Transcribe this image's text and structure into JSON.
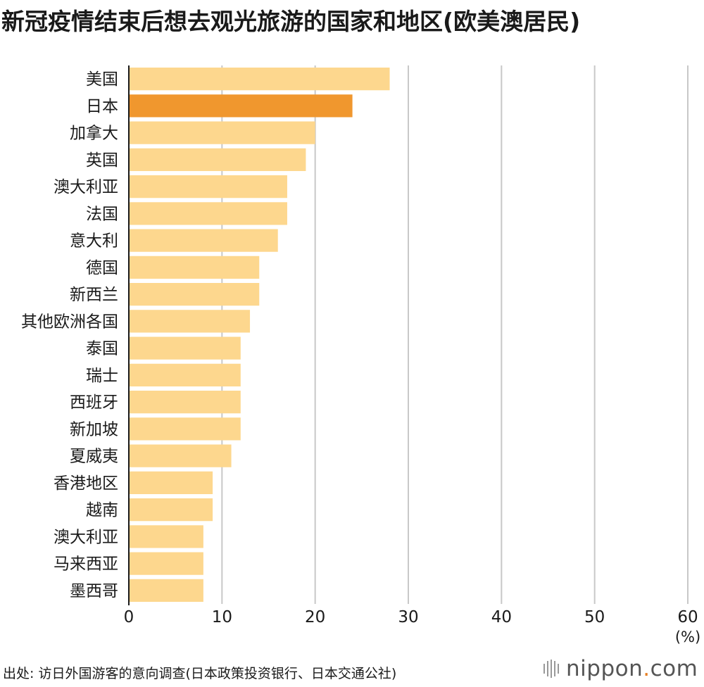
{
  "chart_data": {
    "type": "bar",
    "orientation": "horizontal",
    "title": "新冠疫情结束后想去观光旅游的国家和地区(欧美澳居民)",
    "categories": [
      "美国",
      "日本",
      "加拿大",
      "英国",
      "澳大利亚",
      "法国",
      "意大利",
      "德国",
      "新西兰",
      "其他欧洲各国",
      "泰国",
      "瑞士",
      "西班牙",
      "新加坡",
      "夏威夷",
      "香港地区",
      "越南",
      "澳大利亚",
      "马来西亚",
      "墨西哥"
    ],
    "values": [
      28,
      24,
      20,
      19,
      17,
      17,
      16,
      14,
      14,
      13,
      12,
      12,
      12,
      12,
      11,
      9,
      9,
      8,
      8,
      8
    ],
    "highlight": "日本",
    "xlim": [
      0,
      60
    ],
    "xticks": [
      0,
      10,
      20,
      30,
      40,
      50,
      60
    ],
    "unit": "(%)",
    "grid": true,
    "colors": {
      "bar": "#fdd78e",
      "highlight": "#f0972e",
      "grid": "#c8c8c8",
      "axis": "#1a1a1a"
    }
  },
  "source": "出处: 访日外国游客的意向调查(日本政策投资银行、日本交通公社)",
  "brand": {
    "name": "nippon",
    "dot": ".",
    "suffix": "com",
    "icon": "bars-icon"
  }
}
